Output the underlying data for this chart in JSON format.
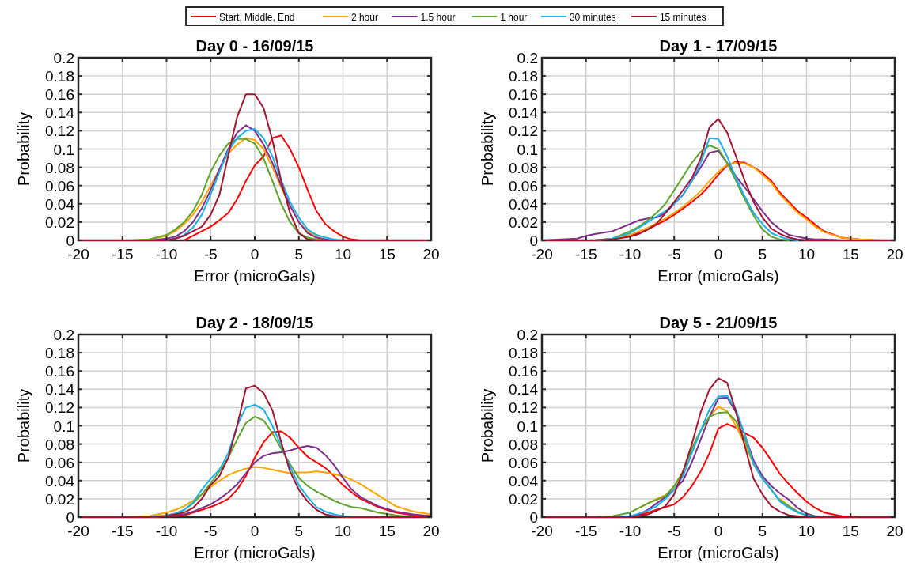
{
  "chart_data": [
    {
      "type": "line",
      "title": "Day 0 - 16/09/15",
      "xlabel": "Error (microGals)",
      "ylabel": "Probability",
      "legend": "top",
      "grid": true,
      "line_style": "solid",
      "marker": "none",
      "xlim": [
        -20,
        20
      ],
      "xticks": [
        -20,
        -15,
        -10,
        -5,
        0,
        5,
        10,
        15,
        20
      ],
      "ylim": [
        0,
        0.2
      ],
      "yticks": [
        0,
        0.02,
        0.04,
        0.06,
        0.08,
        0.1,
        0.12,
        0.14,
        0.16,
        0.18,
        0.2
      ],
      "x": [
        -20,
        -16,
        -15,
        -14,
        -12,
        -10,
        -9,
        -8,
        -7,
        -6,
        -5,
        -4,
        -3,
        -2,
        -1,
        0,
        1,
        2,
        3,
        4,
        5,
        6,
        7,
        8,
        9,
        10,
        11,
        12,
        14,
        16,
        18,
        20
      ],
      "series": [
        {
          "name": "Start, Middle, End",
          "color": "#ff0000",
          "values": [
            null,
            null,
            null,
            null,
            null,
            null,
            null,
            0,
            0.005,
            0.01,
            0.015,
            0.022,
            0.03,
            0.045,
            0.065,
            0.082,
            0.092,
            0.112,
            0.115,
            0.1,
            0.08,
            0.055,
            0.032,
            0.018,
            0.01,
            0.004,
            0.001,
            0,
            null,
            null,
            null,
            null
          ]
        },
        {
          "name": "2 hour",
          "color": "#ffa500",
          "values": [
            null,
            null,
            null,
            0,
            0.001,
            0.005,
            0.01,
            0.018,
            0.028,
            0.042,
            0.06,
            0.078,
            0.095,
            0.105,
            0.112,
            0.11,
            0.1,
            0.08,
            0.058,
            0.038,
            0.02,
            0.01,
            0.004,
            0.001,
            0,
            null,
            null,
            null,
            null,
            null,
            null,
            null
          ]
        },
        {
          "name": "1.5 hour",
          "color": "#7e2f8e",
          "values": [
            null,
            null,
            null,
            null,
            0,
            0.002,
            0.004,
            0.01,
            0.02,
            0.035,
            0.055,
            0.078,
            0.1,
            0.118,
            0.126,
            0.12,
            0.105,
            0.085,
            0.06,
            0.038,
            0.02,
            0.008,
            0.003,
            0.001,
            0,
            null,
            null,
            null,
            null,
            null,
            null,
            null
          ]
        },
        {
          "name": "1 hour",
          "color": "#5ea32a",
          "values": [
            null,
            null,
            null,
            0,
            0.001,
            0.006,
            0.012,
            0.02,
            0.032,
            0.05,
            0.075,
            0.093,
            0.106,
            0.111,
            0.111,
            0.106,
            0.09,
            0.065,
            0.04,
            0.02,
            0.008,
            0.003,
            0.001,
            0,
            null,
            null,
            null,
            null,
            null,
            null,
            null,
            null
          ]
        },
        {
          "name": "30 minutes",
          "color": "#1ab2ec",
          "values": [
            null,
            null,
            null,
            null,
            null,
            0,
            0.002,
            0.006,
            0.014,
            0.028,
            0.05,
            0.075,
            0.098,
            0.112,
            0.12,
            0.122,
            0.112,
            0.092,
            0.066,
            0.042,
            0.025,
            0.012,
            0.006,
            0.003,
            0.001,
            0,
            null,
            null,
            null,
            null,
            null,
            null
          ]
        },
        {
          "name": "15 minutes",
          "color": "#a2142f",
          "values": [
            0,
            0,
            0,
            0,
            0,
            0,
            0.002,
            0.005,
            0.01,
            0.015,
            0.028,
            0.05,
            0.093,
            0.135,
            0.16,
            0.16,
            0.145,
            0.11,
            0.065,
            0.03,
            0.008,
            0.001,
            0,
            0,
            0,
            0,
            0,
            0,
            0,
            0,
            0,
            0
          ]
        }
      ]
    },
    {
      "type": "line",
      "title": "Day 1 - 17/09/15",
      "xlabel": "Error (microGals)",
      "ylabel": "Probability",
      "grid": true,
      "line_style": "solid",
      "marker": "none",
      "xlim": [
        -20,
        20
      ],
      "xticks": [
        -20,
        -15,
        -10,
        -5,
        0,
        5,
        10,
        15,
        20
      ],
      "ylim": [
        0,
        0.2
      ],
      "yticks": [
        0,
        0.02,
        0.04,
        0.06,
        0.08,
        0.1,
        0.12,
        0.14,
        0.16,
        0.18,
        0.2
      ],
      "x": [
        -20,
        -16,
        -15,
        -14,
        -12,
        -10,
        -9,
        -8,
        -7,
        -6,
        -5,
        -4,
        -3,
        -2,
        -1,
        0,
        1,
        2,
        3,
        4,
        5,
        6,
        7,
        8,
        9,
        10,
        11,
        12,
        14,
        16,
        18,
        20
      ],
      "series": [
        {
          "color": "#ff0000",
          "values": [
            null,
            null,
            null,
            0,
            0.002,
            0.005,
            0.008,
            0.012,
            0.017,
            0.022,
            0.028,
            0.035,
            0.042,
            0.05,
            0.06,
            0.072,
            0.082,
            0.086,
            0.085,
            0.08,
            0.074,
            0.065,
            0.052,
            0.042,
            0.032,
            0.025,
            0.017,
            0.01,
            0.003,
            0.001,
            0,
            null
          ]
        },
        {
          "color": "#ffa500",
          "values": [
            null,
            null,
            null,
            0,
            0.002,
            0.006,
            0.01,
            0.014,
            0.019,
            0.024,
            0.03,
            0.037,
            0.045,
            0.054,
            0.065,
            0.075,
            0.083,
            0.085,
            0.084,
            0.08,
            0.072,
            0.063,
            0.05,
            0.04,
            0.03,
            0.023,
            0.015,
            0.009,
            0.003,
            0.001,
            0,
            null
          ]
        },
        {
          "color": "#7e2f8e",
          "values": [
            0,
            0.002,
            0.005,
            0.007,
            0.01,
            0.018,
            0.022,
            0.024,
            0.025,
            0.03,
            0.04,
            0.05,
            0.065,
            0.08,
            0.096,
            0.098,
            0.085,
            0.07,
            0.058,
            0.045,
            0.032,
            0.02,
            0.012,
            0.006,
            0.004,
            0.002,
            0.001,
            0.001,
            0,
            null,
            null,
            null
          ]
        },
        {
          "color": "#5ea32a",
          "values": [
            null,
            null,
            null,
            0,
            0.002,
            0.01,
            0.015,
            0.022,
            0.03,
            0.04,
            0.055,
            0.07,
            0.085,
            0.097,
            0.104,
            0.1,
            0.085,
            0.065,
            0.045,
            0.027,
            0.012,
            0.004,
            0.001,
            0,
            null,
            null,
            null,
            null,
            null,
            null,
            null,
            null
          ]
        },
        {
          "color": "#1ab2ec",
          "values": [
            null,
            null,
            null,
            0,
            0.002,
            0.008,
            0.014,
            0.02,
            0.026,
            0.032,
            0.04,
            0.05,
            0.065,
            0.085,
            0.112,
            0.111,
            0.092,
            0.068,
            0.048,
            0.03,
            0.018,
            0.008,
            0.004,
            0.001,
            0,
            null,
            null,
            null,
            null,
            null,
            null,
            null
          ]
        },
        {
          "color": "#a2142f",
          "values": [
            0,
            0,
            0,
            0,
            0.001,
            0.004,
            0.007,
            0.012,
            0.018,
            0.03,
            0.042,
            0.055,
            0.068,
            0.09,
            0.124,
            0.133,
            0.118,
            0.092,
            0.065,
            0.042,
            0.025,
            0.013,
            0.007,
            0.003,
            0.001,
            0,
            0,
            0,
            0,
            0,
            0,
            0
          ]
        }
      ]
    },
    {
      "type": "line",
      "title": "Day 2 - 18/09/15",
      "xlabel": "Error (microGals)",
      "ylabel": "Probability",
      "grid": true,
      "line_style": "solid",
      "marker": "none",
      "xlim": [
        -20,
        20
      ],
      "xticks": [
        -20,
        -15,
        -10,
        -5,
        0,
        5,
        10,
        15,
        20
      ],
      "ylim": [
        0,
        0.2
      ],
      "yticks": [
        0,
        0.02,
        0.04,
        0.06,
        0.08,
        0.1,
        0.12,
        0.14,
        0.16,
        0.18,
        0.2
      ],
      "x": [
        -20,
        -16,
        -15,
        -14,
        -12,
        -10,
        -9,
        -8,
        -7,
        -6,
        -5,
        -4,
        -3,
        -2,
        -1,
        0,
        1,
        2,
        3,
        4,
        5,
        6,
        7,
        8,
        9,
        10,
        11,
        12,
        14,
        16,
        18,
        20
      ],
      "series": [
        {
          "color": "#ff0000",
          "values": [
            null,
            null,
            null,
            null,
            0,
            0.001,
            0.001,
            0.002,
            0.005,
            0.008,
            0.011,
            0.015,
            0.02,
            0.03,
            0.045,
            0.065,
            0.082,
            0.093,
            0.094,
            0.087,
            0.076,
            0.066,
            0.06,
            0.054,
            0.045,
            0.035,
            0.027,
            0.02,
            0.011,
            0.005,
            0.002,
            0.001
          ]
        },
        {
          "color": "#ffa500",
          "values": [
            null,
            null,
            null,
            0,
            0.001,
            0.005,
            0.008,
            0.012,
            0.018,
            0.025,
            0.033,
            0.04,
            0.046,
            0.05,
            0.053,
            0.055,
            0.054,
            0.052,
            0.05,
            0.048,
            0.049,
            0.049,
            0.05,
            0.049,
            0.047,
            0.045,
            0.041,
            0.036,
            0.024,
            0.012,
            0.006,
            0.003
          ]
        },
        {
          "color": "#7e2f8e",
          "values": [
            null,
            null,
            null,
            null,
            0,
            0.001,
            0.002,
            0.003,
            0.006,
            0.01,
            0.014,
            0.02,
            0.027,
            0.036,
            0.048,
            0.06,
            0.067,
            0.07,
            0.071,
            0.073,
            0.076,
            0.078,
            0.076,
            0.068,
            0.057,
            0.043,
            0.03,
            0.022,
            0.012,
            0.006,
            0.003,
            0.001
          ]
        },
        {
          "color": "#5ea32a",
          "values": [
            null,
            null,
            null,
            null,
            0,
            0.002,
            0.004,
            0.008,
            0.015,
            0.025,
            0.037,
            0.05,
            0.065,
            0.085,
            0.103,
            0.11,
            0.106,
            0.092,
            0.075,
            0.058,
            0.043,
            0.034,
            0.028,
            0.023,
            0.018,
            0.014,
            0.011,
            0.01,
            0.005,
            0.002,
            0,
            null
          ]
        },
        {
          "color": "#1ab2ec",
          "values": [
            null,
            null,
            null,
            null,
            0,
            0.002,
            0.004,
            0.008,
            0.016,
            0.03,
            0.042,
            0.052,
            0.07,
            0.1,
            0.12,
            0.123,
            0.118,
            0.1,
            0.078,
            0.055,
            0.035,
            0.022,
            0.011,
            0.006,
            0.003,
            0.001,
            0,
            null,
            null,
            null,
            null,
            null
          ]
        },
        {
          "color": "#a2142f",
          "values": [
            0,
            0,
            0,
            0,
            0,
            0.001,
            0.003,
            0.005,
            0.01,
            0.02,
            0.035,
            0.045,
            0.065,
            0.1,
            0.141,
            0.144,
            0.136,
            0.117,
            0.082,
            0.05,
            0.03,
            0.017,
            0.008,
            0.003,
            0.001,
            0,
            0,
            0,
            0,
            0,
            0,
            0
          ]
        }
      ]
    },
    {
      "type": "line",
      "title": "Day 5 - 21/09/15",
      "xlabel": "Error (microGals)",
      "ylabel": "Probability",
      "grid": true,
      "line_style": "solid",
      "marker": "none",
      "xlim": [
        -20,
        20
      ],
      "xticks": [
        -20,
        -15,
        -10,
        -5,
        0,
        5,
        10,
        15,
        20
      ],
      "ylim": [
        0,
        0.2
      ],
      "yticks": [
        0,
        0.02,
        0.04,
        0.06,
        0.08,
        0.1,
        0.12,
        0.14,
        0.16,
        0.18,
        0.2
      ],
      "x": [
        -20,
        -16,
        -15,
        -14,
        -12,
        -10,
        -9,
        -8,
        -7,
        -6,
        -5,
        -4,
        -3,
        -2,
        -1,
        0,
        1,
        2,
        3,
        4,
        5,
        6,
        7,
        8,
        9,
        10,
        11,
        12,
        14,
        16,
        18,
        20
      ],
      "series": [
        {
          "color": "#ff0000",
          "values": [
            null,
            null,
            null,
            null,
            0,
            0.001,
            0.002,
            0.005,
            0.008,
            0.011,
            0.014,
            0.022,
            0.034,
            0.05,
            0.07,
            0.097,
            0.102,
            0.098,
            0.092,
            0.087,
            0.076,
            0.062,
            0.047,
            0.036,
            0.026,
            0.017,
            0.01,
            0.005,
            0.001,
            0,
            null,
            null
          ]
        },
        {
          "color": "#ffa500",
          "values": [
            null,
            null,
            null,
            null,
            null,
            null,
            0.01,
            0.015,
            0.02,
            0.024,
            0.033,
            0.05,
            0.075,
            0.095,
            0.11,
            0.121,
            0.116,
            0.1,
            0.08,
            0.058,
            null,
            null,
            0.02,
            0.012,
            0.006,
            null,
            null,
            null,
            null,
            null,
            null,
            null
          ]
        },
        {
          "color": "#7e2f8e",
          "values": [
            null,
            null,
            null,
            null,
            0,
            0.001,
            0.003,
            0.008,
            0.015,
            0.022,
            0.03,
            0.04,
            0.06,
            0.085,
            0.11,
            0.13,
            0.131,
            0.115,
            0.09,
            0.062,
            0.045,
            0.034,
            0.026,
            0.019,
            0.01,
            0.004,
            0.001,
            0,
            null,
            null,
            null,
            null
          ]
        },
        {
          "color": "#5ea32a",
          "values": [
            null,
            null,
            null,
            0,
            0.001,
            0.005,
            0.01,
            0.015,
            0.019,
            0.023,
            0.034,
            0.05,
            0.075,
            0.095,
            0.11,
            0.114,
            0.115,
            0.105,
            0.085,
            0.058,
            0.042,
            0.03,
            0.018,
            0.012,
            0.006,
            0.002,
            0,
            null,
            null,
            null,
            null,
            null
          ]
        },
        {
          "color": "#1ab2ec",
          "values": [
            null,
            null,
            null,
            null,
            0,
            0.001,
            0.004,
            0.007,
            0.012,
            0.02,
            0.03,
            0.045,
            0.07,
            0.095,
            0.118,
            0.132,
            0.133,
            0.118,
            0.09,
            0.058,
            0.042,
            0.03,
            0.017,
            0.01,
            0.005,
            0.002,
            0,
            null,
            null,
            null,
            null,
            null
          ]
        },
        {
          "color": "#a2142f",
          "values": [
            0,
            0,
            0,
            0,
            0,
            0,
            0.001,
            0.003,
            0.007,
            0.012,
            0.025,
            0.05,
            0.08,
            0.115,
            0.14,
            0.152,
            0.147,
            0.115,
            0.078,
            0.042,
            0.025,
            0.012,
            0.006,
            0.002,
            0.001,
            0,
            0,
            0,
            0,
            0,
            0,
            0
          ]
        }
      ]
    }
  ]
}
